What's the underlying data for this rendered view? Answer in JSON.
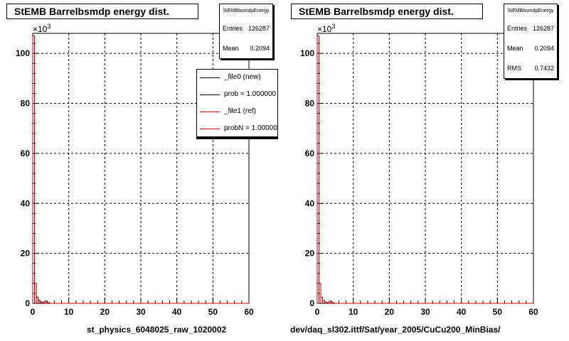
{
  "colors": {
    "frame": "#000000",
    "grid": "#000000",
    "ref": "#cc0000",
    "new": "#000000"
  },
  "panels": [
    {
      "title": "StEMB Barrelbsmdp energy dist.",
      "stats": {
        "name": "StEMBbsmdpEnergy",
        "rows": [
          {
            "label": "Entries",
            "value": "126287"
          },
          {
            "label": "Mean",
            "value": "0.2094"
          }
        ]
      },
      "legend": [
        {
          "label": "_file0 (new)",
          "color": "#000000"
        },
        {
          "label": "prob = 1.000000",
          "color": "#000000"
        },
        {
          "label": "_file1 (ref)",
          "color": "#cc0000"
        },
        {
          "label": "probN = 1.000000",
          "color": "#cc0000"
        }
      ],
      "xtitle": "st_physics_6048025_raw_1020002"
    },
    {
      "title": "StEMB Barrelbsmdp energy dist.",
      "stats": {
        "name": "StEMBbsmdpEnergy",
        "rows": [
          {
            "label": "Entries",
            "value": "126287"
          },
          {
            "label": "Mean",
            "value": "0.2094"
          },
          {
            "label": "RMS",
            "value": "0.7432"
          }
        ]
      },
      "legend": [],
      "xtitle": "dev/daq_sl302.ittf/Sat/year_2005/CuCu200_MinBias/"
    }
  ],
  "chart_data": [
    {
      "type": "bar",
      "title": "StEMB Barrelbsmdp energy dist.",
      "xlabel": "st_physics_6048025_raw_1020002",
      "ylabel": "",
      "y_exponent": "×10^3",
      "xlim": [
        0,
        60
      ],
      "ylim": [
        0,
        108
      ],
      "xticks": [
        0,
        10,
        20,
        30,
        40,
        50,
        60
      ],
      "yticks": [
        0,
        20,
        40,
        60,
        80,
        100
      ],
      "grid": true,
      "legend_position": "top-right",
      "series": [
        {
          "name": "_file0 (new)",
          "x": [
            0.25,
            0.75,
            1.25,
            1.75,
            2.25,
            2.75,
            3.5,
            4.5
          ],
          "values": [
            107,
            8,
            2.5,
            1.2,
            0.6,
            0.4,
            0.9,
            0.3
          ]
        },
        {
          "name": "_file1 (ref)",
          "x": [
            0.25,
            0.75,
            1.25,
            1.75,
            2.25,
            2.75,
            3.5,
            4.5
          ],
          "values": [
            107,
            8,
            2.5,
            1.2,
            0.6,
            0.4,
            0.9,
            0.3
          ]
        }
      ]
    },
    {
      "type": "bar",
      "title": "StEMB Barrelbsmdp energy dist.",
      "xlabel": "dev/daq_sl302.ittf/Sat/year_2005/CuCu200_MinBias/",
      "ylabel": "",
      "y_exponent": "×10^3",
      "xlim": [
        0,
        60
      ],
      "ylim": [
        0,
        108
      ],
      "xticks": [
        0,
        10,
        20,
        30,
        40,
        50,
        60
      ],
      "yticks": [
        0,
        20,
        40,
        60,
        80,
        100
      ],
      "grid": true,
      "series": [
        {
          "name": "",
          "x": [
            0.25,
            0.75,
            1.25,
            1.75,
            2.25,
            2.75,
            3.5,
            4.5
          ],
          "values": [
            107,
            8,
            2.5,
            1.2,
            0.6,
            0.4,
            0.9,
            0.3
          ]
        }
      ]
    }
  ]
}
